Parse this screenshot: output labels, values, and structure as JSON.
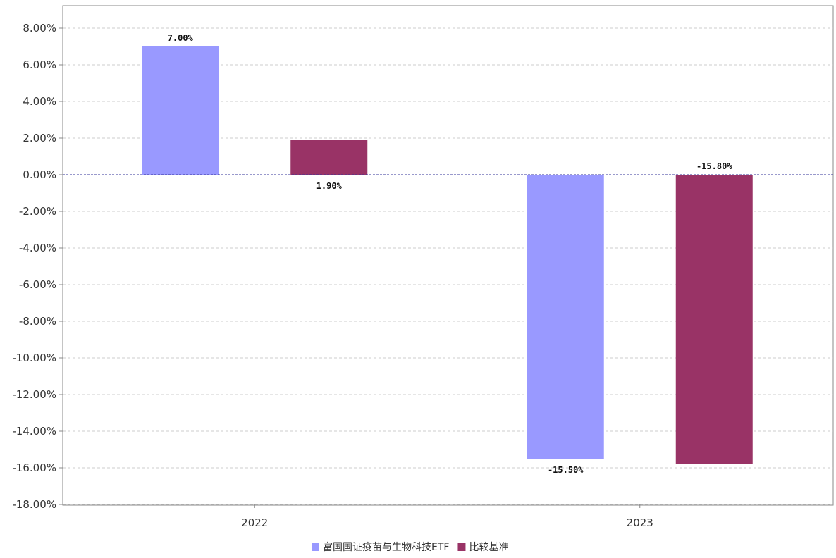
{
  "chart_data": {
    "type": "bar",
    "categories": [
      "2022",
      "2023"
    ],
    "series": [
      {
        "name": "富国国证疫苗与生物科技ETF",
        "values": [
          7.0,
          -15.5
        ],
        "labels": [
          "7.00%",
          "-15.50%"
        ],
        "color": "#9999ff"
      },
      {
        "name": "比较基准",
        "values": [
          1.9,
          -15.8
        ],
        "labels": [
          "1.90%",
          "-15.80%"
        ],
        "color": "#993366"
      }
    ],
    "ylim": [
      -18,
      8
    ],
    "y_ticks": [
      8,
      6,
      4,
      2,
      0,
      -2,
      -4,
      -6,
      -8,
      -10,
      -12,
      -14,
      -16,
      -18
    ],
    "y_tick_labels": [
      "8.00%",
      "6.00%",
      "4.00%",
      "2.00%",
      "0.00%",
      "-2.00%",
      "-4.00%",
      "-6.00%",
      "-8.00%",
      "-10.00%",
      "-12.00%",
      "-14.00%",
      "-16.00%",
      "-18.00%"
    ],
    "grid": true,
    "legend_position": "bottom-center",
    "colors": {
      "grid": "#cccccc",
      "zero_line": "#333399",
      "axis": "#888888"
    }
  }
}
